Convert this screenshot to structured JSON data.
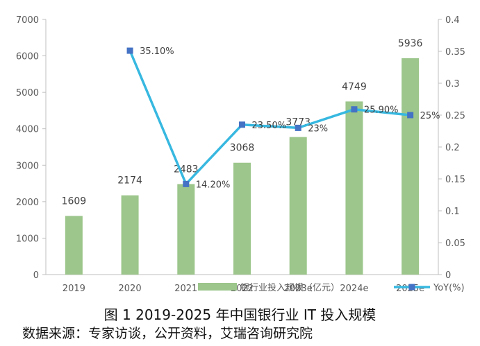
{
  "chart_data": {
    "type": "bar",
    "categories": [
      "2019",
      "2020",
      "2021",
      "2022",
      "2023e",
      "2024e",
      "2025e"
    ],
    "series": [
      {
        "name": "银行业投入规模（亿元）",
        "chart": "bar",
        "axis": "left",
        "values": [
          1609,
          2174,
          2483,
          3068,
          3773,
          4749,
          5936
        ],
        "data_labels": [
          "1609",
          "2174",
          "2483",
          "3068",
          "3773",
          "4749",
          "5936"
        ],
        "color": "#9cc68b"
      },
      {
        "name": "YoY(%)",
        "chart": "line",
        "axis": "right",
        "values": [
          null,
          0.351,
          0.142,
          0.235,
          0.23,
          0.259,
          0.25
        ],
        "data_labels": [
          "",
          "35.10%",
          "14.20%",
          "23.50%",
          "23%",
          "25.90%",
          "25%"
        ],
        "color": "#37b8e0",
        "marker_color": "#4472c4"
      }
    ],
    "y_left": {
      "ylim": [
        0,
        7000
      ],
      "ticks": [
        "0",
        "1000",
        "2000",
        "3000",
        "4000",
        "5000",
        "6000",
        "7000"
      ]
    },
    "y_right": {
      "ylim": [
        0,
        0.4
      ],
      "ticks": [
        "0",
        "0.05",
        "0.1",
        "0.15",
        "0.2",
        "0.25",
        "0.3",
        "0.35",
        "0.4"
      ]
    },
    "grid": false,
    "legend_position": "bottom-right"
  },
  "caption": "图 1 2019-2025 年中国银行业 IT 投入规模",
  "source": "数据来源：专家访谈，公开资料，艾瑞咨询研究院"
}
